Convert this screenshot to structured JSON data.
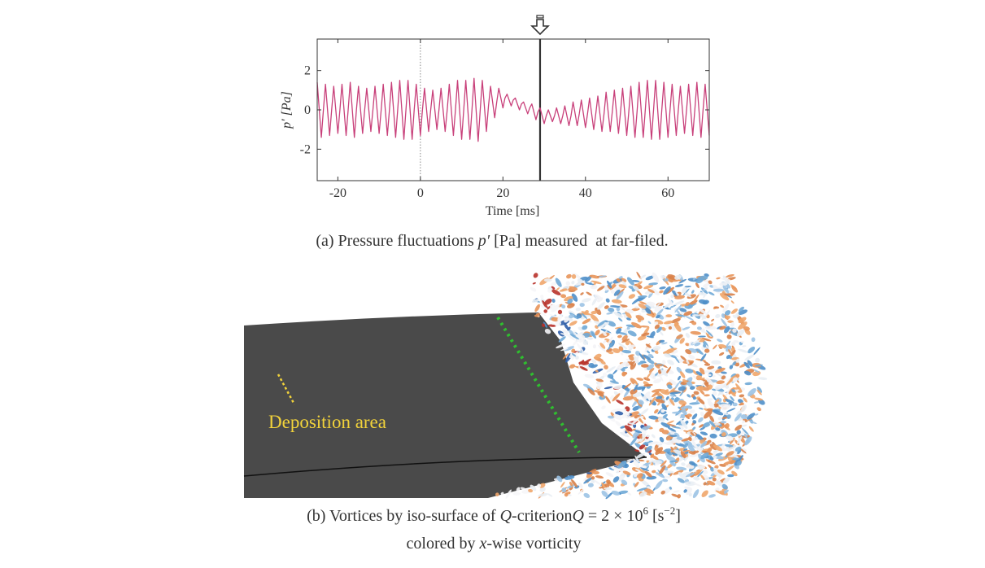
{
  "chart_data": {
    "type": "line",
    "x_label": "Time [ms]",
    "y_label": "p′ [Pa]",
    "color": "#c8407a",
    "xlim": [
      -25,
      70
    ],
    "xticks": [
      -20,
      0,
      20,
      40,
      60
    ],
    "ylim": [
      -3.6,
      3.6
    ],
    "yticks": [
      -2,
      0,
      2
    ],
    "vlines": [
      {
        "x": 0,
        "style": "dotted"
      },
      {
        "x": 29,
        "style": "solid"
      }
    ],
    "x": [
      -25,
      -24.5,
      -24,
      -23.5,
      -23,
      -22.5,
      -22,
      -21.5,
      -21,
      -20.5,
      -20,
      -19.5,
      -19,
      -18.5,
      -18,
      -17.5,
      -17,
      -16.5,
      -16,
      -15.5,
      -15,
      -14.5,
      -14,
      -13.5,
      -13,
      -12.5,
      -12,
      -11.5,
      -11,
      -10.5,
      -10,
      -9.5,
      -9,
      -8.5,
      -8,
      -7.5,
      -7,
      -6.5,
      -6,
      -5.5,
      -5,
      -4.5,
      -4,
      -3.5,
      -3,
      -2.5,
      -2,
      -1.5,
      -1,
      -0.5,
      0,
      0.5,
      1,
      1.5,
      2,
      2.5,
      3,
      3.5,
      4,
      4.5,
      5,
      5.5,
      6,
      6.5,
      7,
      7.5,
      8,
      8.5,
      9,
      9.5,
      10,
      10.5,
      11,
      11.5,
      12,
      12.5,
      13,
      13.5,
      14,
      14.5,
      15,
      15.5,
      16,
      16.5,
      17,
      17.5,
      18,
      18.5,
      19,
      19.5,
      20,
      20.5,
      21,
      21.5,
      22,
      22.5,
      23,
      23.5,
      24,
      24.5,
      25,
      25.5,
      26,
      26.5,
      27,
      27.5,
      28,
      28.5,
      29,
      29.5,
      30,
      30.5,
      31,
      31.5,
      32,
      32.5,
      33,
      33.5,
      34,
      34.5,
      35,
      35.5,
      36,
      36.5,
      37,
      37.5,
      38,
      38.5,
      39,
      39.5,
      40,
      40.5,
      41,
      41.5,
      42,
      42.5,
      43,
      43.5,
      44,
      44.5,
      45,
      45.5,
      46,
      46.5,
      47,
      47.5,
      48,
      48.5,
      49,
      49.5,
      50,
      50.5,
      51,
      51.5,
      52,
      52.5,
      53,
      53.5,
      54,
      54.5,
      55,
      55.5,
      56,
      56.5,
      57,
      57.5,
      58,
      58.5,
      59,
      59.5,
      60,
      60.5,
      61,
      61.5,
      62,
      62.5,
      63,
      63.5,
      64,
      64.5,
      65,
      65.5,
      66,
      66.5,
      67,
      67.5,
      68,
      68.5,
      69,
      69.5,
      70
    ],
    "values": [
      1.4,
      0,
      -1.4,
      0,
      1.3,
      0,
      -1.3,
      0,
      1.2,
      0,
      -1.2,
      0,
      1.3,
      0,
      -1.3,
      0,
      1.4,
      0,
      -1.4,
      0,
      1.2,
      0,
      -1.2,
      0,
      1.1,
      0,
      -1.1,
      0,
      1.2,
      0,
      -1.2,
      0,
      1.3,
      0,
      -1.3,
      0,
      1.4,
      0,
      -1.4,
      0,
      1.5,
      0,
      -1.5,
      0,
      1.5,
      0,
      -1.5,
      0,
      1.3,
      0,
      -1.3,
      0,
      1.1,
      0,
      -1.1,
      0,
      1.0,
      0,
      -1.0,
      0,
      1.1,
      0,
      -1.1,
      0,
      1.3,
      0,
      -1.3,
      0,
      1.5,
      0,
      -1.5,
      0,
      1.5,
      0,
      -1.5,
      0,
      1.6,
      0,
      -1.6,
      0,
      1.5,
      0.2,
      -1.1,
      0.2,
      1.2,
      0.4,
      -0.4,
      0.4,
      1.1,
      0.6,
      0.1,
      0.6,
      0.8,
      0.5,
      0.2,
      0.5,
      0.6,
      0.3,
      0,
      0.3,
      0.4,
      0.1,
      -0.2,
      0.1,
      0.3,
      -0.1,
      -0.5,
      -0.1,
      0.1,
      -0.3,
      -0.7,
      -0.3,
      0,
      -0.3,
      -0.6,
      -0.3,
      0.1,
      -0.3,
      -0.7,
      -0.3,
      0.2,
      -0.3,
      -0.8,
      -0.3,
      0.4,
      -0.2,
      -0.8,
      -0.2,
      0.5,
      -0.2,
      -0.9,
      -0.2,
      0.6,
      -0.2,
      -1.0,
      -0.2,
      0.7,
      -0.2,
      -1.1,
      -0.2,
      0.9,
      -0.1,
      -1.1,
      -0.1,
      1.0,
      -0.1,
      -1.2,
      -0.1,
      1.1,
      -0.1,
      -1.3,
      -0.1,
      1.2,
      -0.1,
      -1.4,
      -0.1,
      1.4,
      0,
      -1.4,
      0,
      1.5,
      0,
      -1.5,
      0,
      1.5,
      0,
      -1.5,
      0,
      1.4,
      0,
      -1.4,
      0,
      1.3,
      0,
      -1.3,
      0,
      1.2,
      0,
      -1.2,
      0,
      1.3,
      0,
      -1.3,
      0,
      1.4,
      0,
      -1.4,
      0,
      1.3,
      0,
      -1.3
    ]
  },
  "figure": {
    "caption_a": [
      "(a) Pressure fluctuations ",
      "p′",
      " [Pa] measured  at far-filed."
    ],
    "image_label": "Deposition area",
    "caption_b_line1": [
      "(b) Vortices by iso-surface of ",
      "Q",
      "-criterion",
      "Q",
      " = 2 × 10",
      "6",
      " [s",
      "−2",
      "]"
    ],
    "caption_b_line2": [
      "colored by ",
      "x",
      "-wise vorticity"
    ]
  }
}
